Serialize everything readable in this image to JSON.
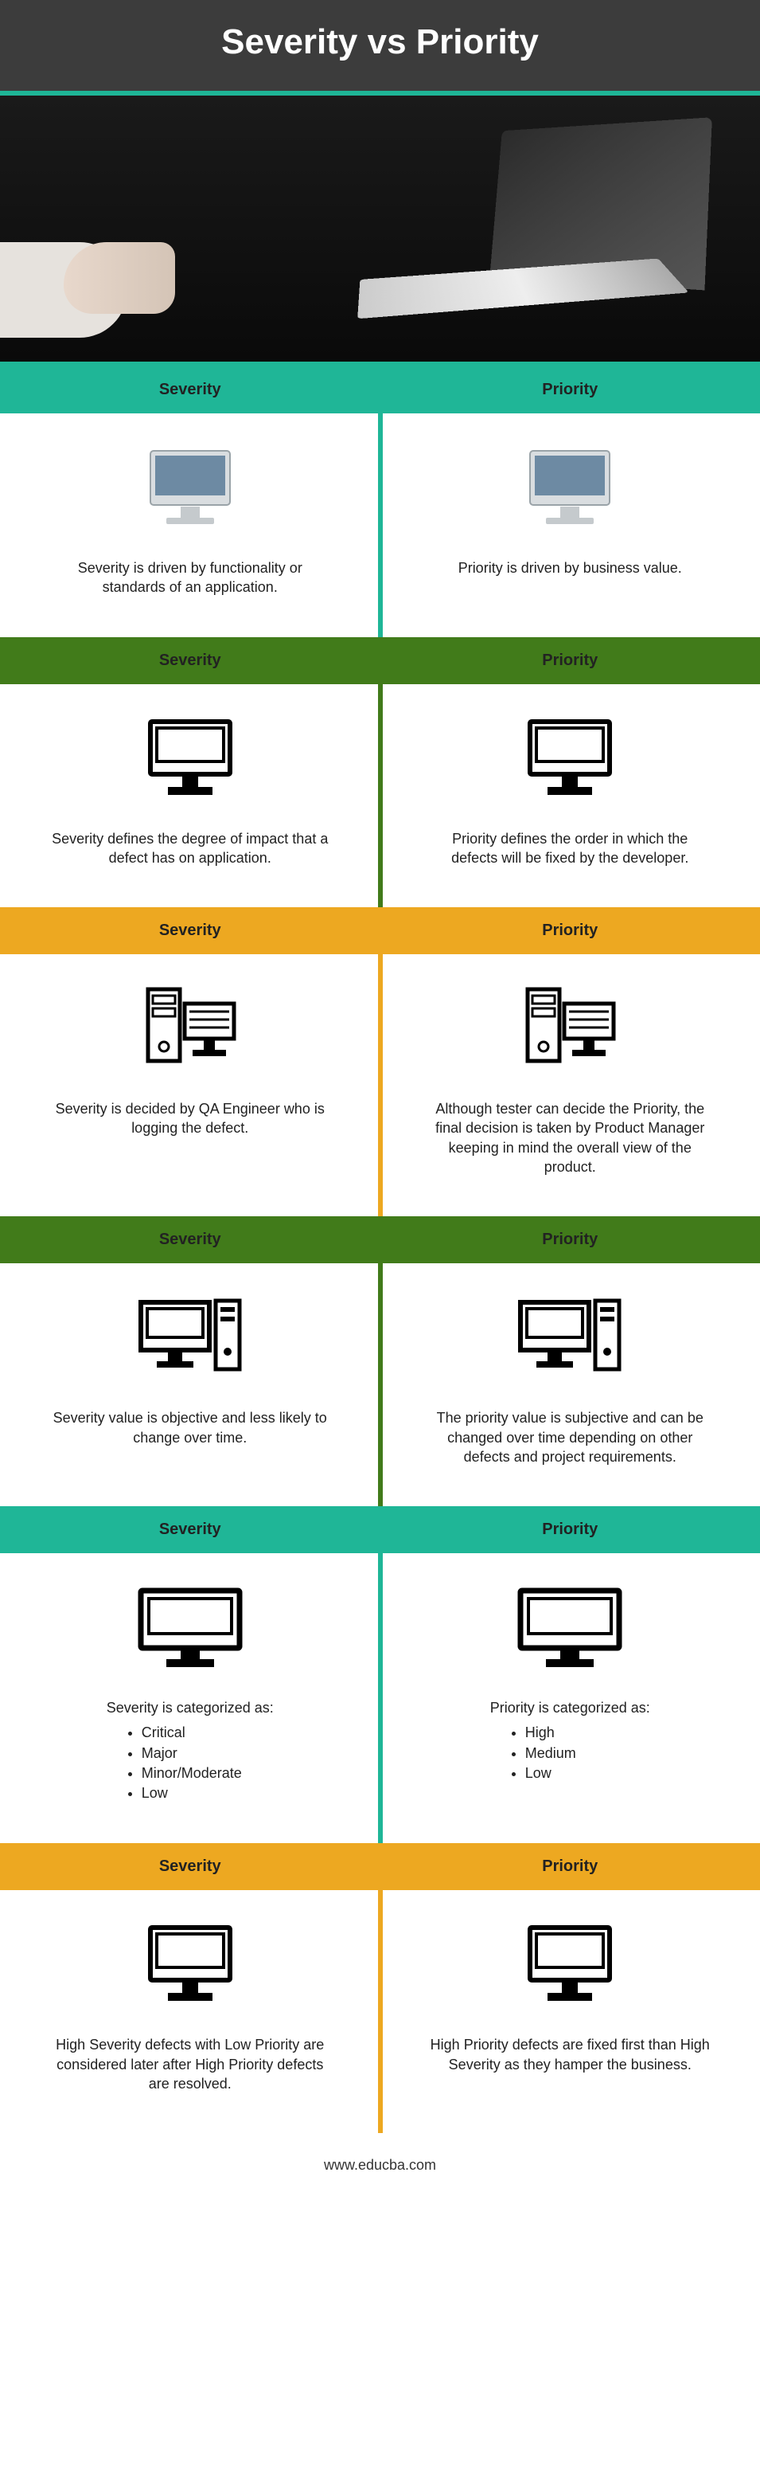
{
  "title": "Severity vs Priority",
  "footer": "www.educba.com",
  "labels": {
    "severity": "Severity",
    "priority": "Priority"
  },
  "rows": [
    {
      "band_color": "#1fb697",
      "icon": "monitor-color",
      "severity": "Severity is driven by functionality or standards of an application.",
      "priority": "Priority is driven by business value."
    },
    {
      "band_color": "#417b1a",
      "icon": "monitor-outline",
      "severity": "Severity defines the degree of impact that a defect has on application.",
      "priority": "Priority defines the order in which the defects will be fixed by the developer."
    },
    {
      "band_color": "#eda821",
      "icon": "server",
      "severity": "Severity is decided by QA Engineer who is logging the defect.",
      "priority": "Although tester can decide the Priority, the final decision is taken by Product Manager keeping in mind the overall view of the product."
    },
    {
      "band_color": "#417b1a",
      "icon": "desktop-tower",
      "severity": "Severity value is objective and less likely to change over time.",
      "priority": "The priority value is subjective and can be changed over time depending on other defects and project requirements."
    },
    {
      "band_color": "#1fb697",
      "icon": "widescreen",
      "severity_list": {
        "lead": "Severity is categorized as:",
        "items": [
          "Critical",
          "Major",
          "Minor/Moderate",
          "Low"
        ]
      },
      "priority_list": {
        "lead": "Priority is categorized as:",
        "items": [
          "High",
          "Medium",
          "Low"
        ]
      }
    },
    {
      "band_color": "#eda821",
      "icon": "monitor-outline",
      "severity": "High Severity defects with Low Priority are considered later after High Priority defects are resolved.",
      "priority": "High Priority defects are fixed first than High Severity as they hamper the business."
    }
  ]
}
